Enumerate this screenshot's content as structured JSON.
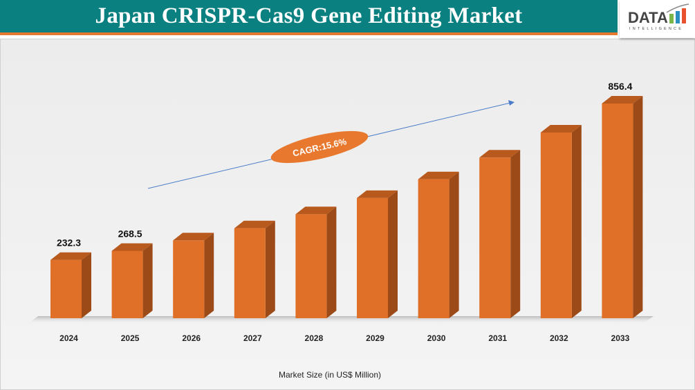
{
  "header": {
    "title": "Japan CRISPR-Cas9 Gene Editing Market"
  },
  "logo": {
    "text": "DATA",
    "subtext": "INTELLIGENCE"
  },
  "colors": {
    "title_bar": "#0a8080",
    "accent": "#e8782e",
    "bar_front": "#e07028",
    "bar_side": "#9c4a17",
    "bar_top": "#b85a1e",
    "arrow": "#4a7cc9"
  },
  "chart_data": {
    "type": "bar",
    "style": "3d",
    "categories": [
      "2024",
      "2025",
      "2026",
      "2027",
      "2028",
      "2029",
      "2030",
      "2031",
      "2032",
      "2033"
    ],
    "values": [
      232.3,
      268.5,
      310.4,
      358.8,
      414.8,
      479.5,
      554.3,
      640.8,
      740.8,
      856.4
    ],
    "data_labels": {
      "2024": "232.3",
      "2025": "268.5",
      "2033": "856.4"
    },
    "xlabel": "Market Size (in US$ Million)",
    "annotation": "CAGR:15.6%",
    "ylim": [
      0,
      900
    ],
    "grid": false,
    "legend": "none"
  }
}
